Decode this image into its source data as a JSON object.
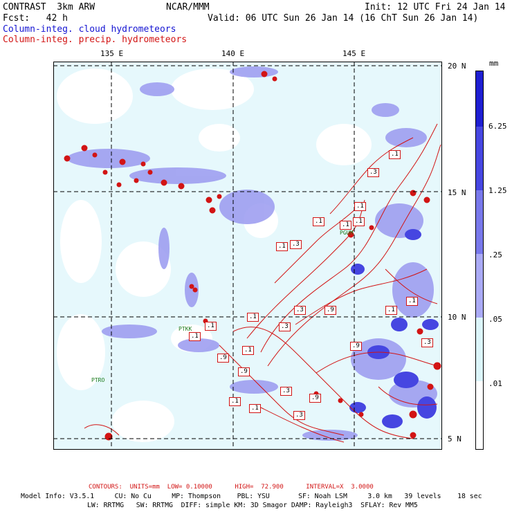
{
  "header": {
    "title": "CONTRAST  3km ARW",
    "org": "NCAR/MMM",
    "init": "Init: 12 UTC Fri 24 Jan 14",
    "fcst": "Fcst:   42 h",
    "valid": "Valid: 06 UTC Sun 26 Jan 14 (16 ChT Sun 26 Jan 14)",
    "cloud_label": "Column-integ. cloud hydrometeors",
    "precip_label": "Column-integ. precip. hydrometeors"
  },
  "map": {
    "lon_labels": [
      "135 E",
      "140 E",
      "145 E"
    ],
    "lat_labels": [
      "20 N",
      "15 N",
      "10 N",
      "5 N"
    ],
    "stations": [
      "PGUM",
      "PTRO",
      "PTKK"
    ],
    "contour_labels": [
      ".1",
      ".3",
      ".1",
      ".1",
      ".1",
      ".1",
      ".3",
      ".1",
      ".1",
      ".3",
      ".9",
      ".1",
      ".3",
      ".1",
      ".9",
      ".1",
      ".1",
      ".3",
      ".9",
      ".1",
      ".9",
      ".3",
      ".9",
      ".1",
      ".3",
      ".1"
    ],
    "colors": {
      "cloud_fill_light": "#e6f8fc",
      "cloud_fill_mid": "#9a9af0",
      "cloud_fill_dark": "#6464e6",
      "precip_contour": "#d21414",
      "grid": "#000000"
    }
  },
  "legend": {
    "unit": "mm",
    "levels": [
      "6.25",
      "1.25",
      ".25",
      ".05",
      ".01"
    ],
    "colors": [
      "#1e1ed2",
      "#4646e1",
      "#7878eb",
      "#aaaaf5",
      "#dcf5fa",
      "#ffffff"
    ]
  },
  "footer": {
    "contours": "CONTOURS:  UNITS=mm  LOW= 0.10000      HIGH=  72.900      INTERVAL=X  3.0000",
    "model_line1": "Model Info: V3.5.1     CU: No Cu     MP: Thompson    PBL: YSU       SF: Noah LSM     3.0 km   39 levels    18 sec",
    "model_line2": "LW: RRTMG   SW: RRTMG  DIFF: simple KM: 3D Smagor DAMP: Rayleigh3  SFLAY: Rev MM5"
  }
}
